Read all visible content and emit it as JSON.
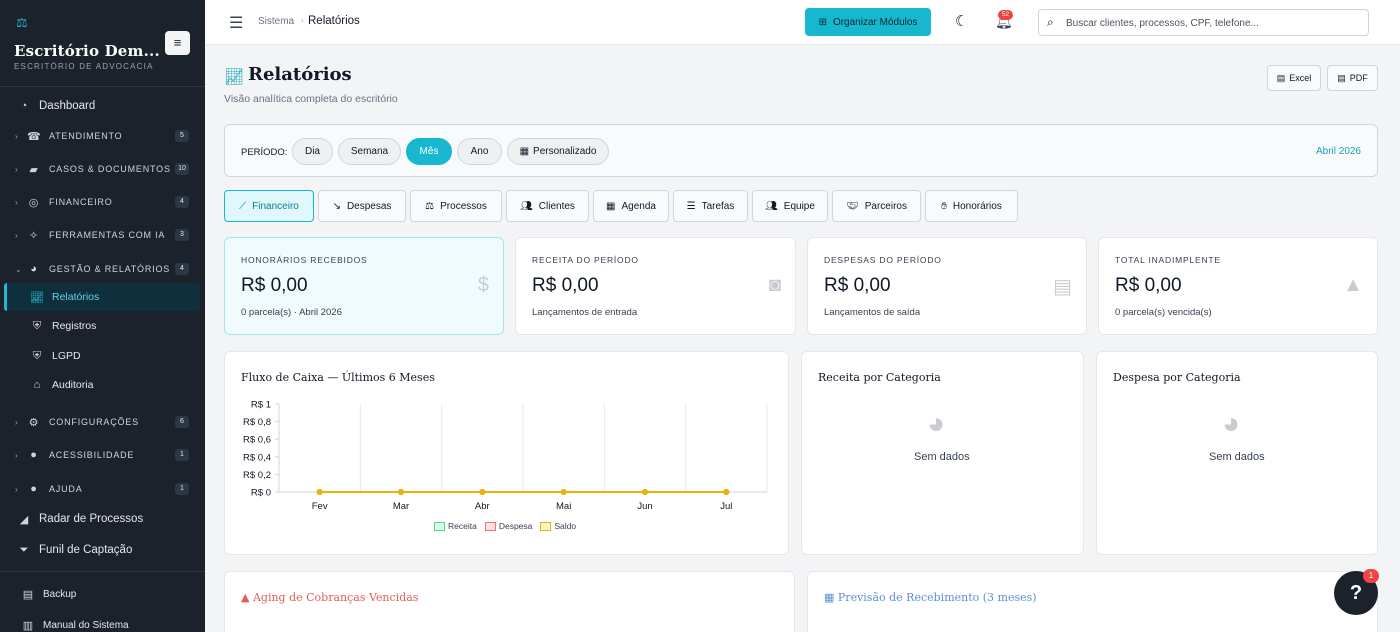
{
  "sidebar": {
    "title": "Escritório Dem...",
    "subtitle": "ESCRITÓRIO DE ADVOCACIA",
    "toggle_icon": "≡",
    "dashboard": "Dashboard",
    "groups": [
      {
        "label": "ATENDIMENTO",
        "count": "5"
      },
      {
        "label": "CASOS & DOCUMENTOS",
        "count": "10"
      },
      {
        "label": "FINANCEIRO",
        "count": "4"
      },
      {
        "label": "FERRAMENTAS COM IA",
        "count": "3"
      },
      {
        "label": "GESTÃO & RELATÓRIOS",
        "count": "4"
      },
      {
        "label": "CONFIGURAÇÕES",
        "count": "6"
      },
      {
        "label": "ACESSIBILIDADE",
        "count": "1"
      },
      {
        "label": "AJUDA",
        "count": "1"
      }
    ],
    "sub_items": [
      "Relatórios",
      "Registros",
      "LGPD",
      "Auditoria"
    ],
    "extra_items": [
      "Radar de Processos",
      "Funil de Captação"
    ],
    "footer_items": [
      "Backup",
      "Manual do Sistema"
    ]
  },
  "header": {
    "breadcrumb_root": "Sistema",
    "breadcrumb_current": "Relatórios",
    "organize_label": "Organizar Módulos",
    "notification_count": "52",
    "search_placeholder": "Buscar clientes, processos, CPF, telefone..."
  },
  "page": {
    "title": "Relatórios",
    "subtitle": "Visão analítica completa do escritório",
    "excel_label": "Excel",
    "pdf_label": "PDF"
  },
  "period": {
    "label": "PERÍODO:",
    "options": [
      "Dia",
      "Semana",
      "Mês",
      "Ano",
      "Personalizado"
    ],
    "selected": "Mês",
    "current": "Abril 2026"
  },
  "tabs": [
    "Financeiro",
    "Despesas",
    "Processos",
    "Clientes",
    "Agenda",
    "Tarefas",
    "Equipe",
    "Parceiros",
    "Honorários"
  ],
  "kpis": [
    {
      "label": "HONORÁRIOS RECEBIDOS",
      "value": "R$ 0,00",
      "sub": "0 parcela(s) · Abril 2026"
    },
    {
      "label": "RECEITA DO PERÍODO",
      "value": "R$ 0,00",
      "sub": "Lançamentos de entrada"
    },
    {
      "label": "DESPESAS DO PERÍODO",
      "value": "R$ 0,00",
      "sub": "Lançamentos de saída"
    },
    {
      "label": "TOTAL INADIMPLENTE",
      "value": "R$ 0,00",
      "sub": "0 parcela(s) vencida(s)"
    }
  ],
  "cards": {
    "cashflow_title": "Fluxo de Caixa — Últimos 6 Meses",
    "revenue_cat_title": "Receita por Categoria",
    "expense_cat_title": "Despesa por Categoria",
    "no_data": "Sem dados",
    "aging_title": "Aging de Cobranças Vencidas",
    "forecast_title": "Previsão de Recebimento (3 meses)"
  },
  "colors": {
    "accent": "#17b8cf",
    "receita": "#4ade80",
    "despesa": "#f87171",
    "saldo": "#eab308",
    "aging": "#e05d5d",
    "forecast": "#5b8fd6"
  },
  "chart_data": {
    "type": "line",
    "title": "Fluxo de Caixa — Últimos 6 Meses",
    "categories": [
      "Fev",
      "Mar",
      "Abr",
      "Mai",
      "Jun",
      "Jul"
    ],
    "yticks": [
      "R$ 0",
      "R$ 0,2",
      "R$ 0,4",
      "R$ 0,6",
      "R$ 0,8",
      "R$ 1"
    ],
    "ylim": [
      0,
      1
    ],
    "series": [
      {
        "name": "Receita",
        "values": [
          0,
          0,
          0,
          0,
          0,
          0
        ]
      },
      {
        "name": "Despesa",
        "values": [
          0,
          0,
          0,
          0,
          0,
          0
        ]
      },
      {
        "name": "Saldo",
        "values": [
          0,
          0,
          0,
          0,
          0,
          0
        ]
      }
    ],
    "legend": "bottom",
    "grid": true
  },
  "help": {
    "label": "?",
    "badge": "1"
  }
}
